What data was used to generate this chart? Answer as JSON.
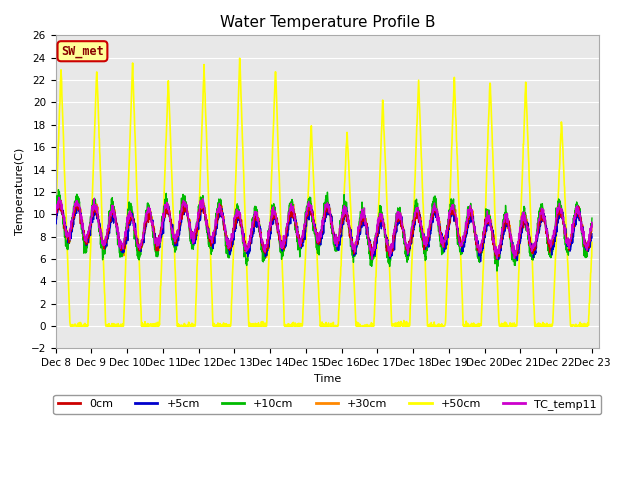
{
  "title": "Water Temperature Profile B",
  "xlabel": "Time",
  "ylabel": "Temperature(C)",
  "ylim": [
    -2,
    26
  ],
  "xlim": [
    0,
    15.2
  ],
  "plot_bg": "#e8e8e8",
  "series": {
    "0cm": {
      "color": "#cc0000",
      "lw": 1.0
    },
    "+5cm": {
      "color": "#0000cc",
      "lw": 1.0
    },
    "+10cm": {
      "color": "#00bb00",
      "lw": 1.0
    },
    "+30cm": {
      "color": "#ff8800",
      "lw": 1.0
    },
    "+50cm": {
      "color": "#ffff00",
      "lw": 1.2
    },
    "TC_temp11": {
      "color": "#cc00cc",
      "lw": 1.0
    }
  },
  "xtick_labels": [
    "Dec 8",
    "Dec 9",
    "Dec 10",
    "Dec 11",
    "Dec 12",
    "Dec 13",
    "Dec 14",
    "Dec 15",
    "Dec 16",
    "Dec 17",
    "Dec 18",
    "Dec 19",
    "Dec 20",
    "Dec 21",
    "Dec 22",
    "Dec 23"
  ],
  "annotation": {
    "text": "SW_met",
    "color": "#880000",
    "bg": "#ffff99",
    "border": "#cc0000"
  },
  "grid_color": "#ffffff",
  "tick_fontsize": 7.5,
  "title_fontsize": 11,
  "legend_fontsize": 8
}
